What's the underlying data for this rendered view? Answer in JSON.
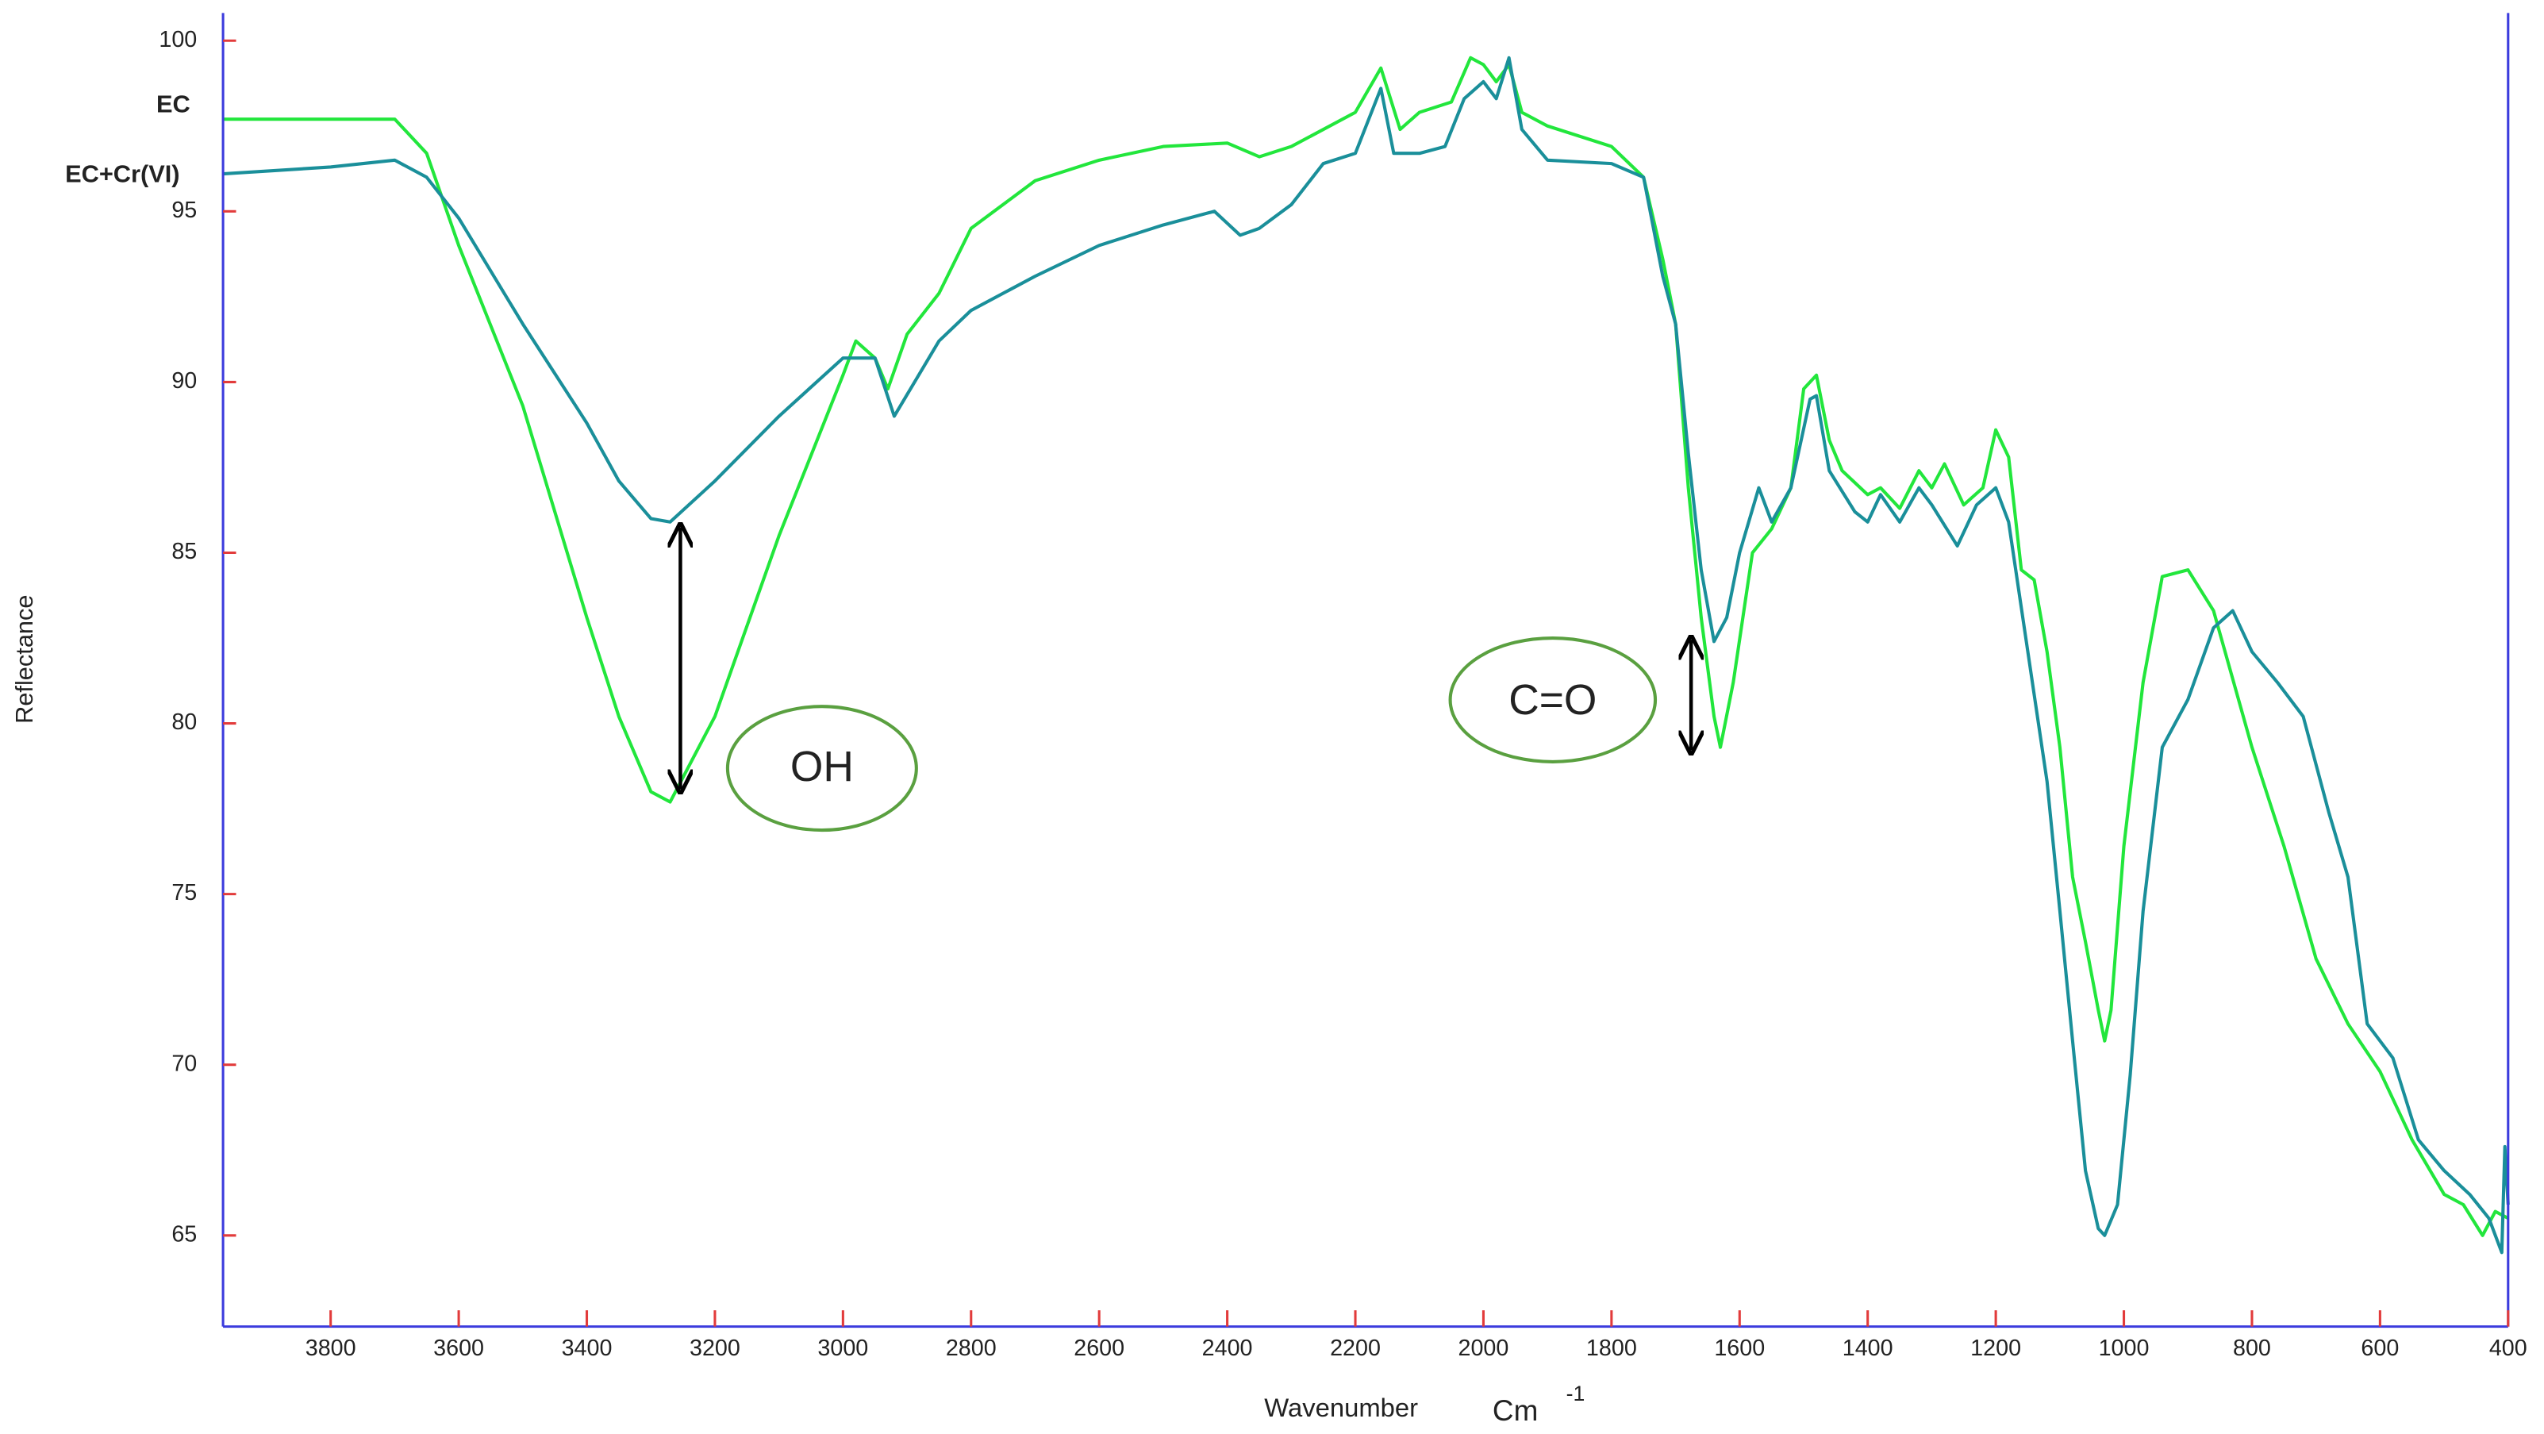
{
  "chart_data": {
    "type": "line",
    "x_label": "Wavenumber",
    "x_label_unit": "Cm",
    "x_label_exponent": "-1",
    "y_label": "Reflectance",
    "annotations": [
      "OH",
      "C=O"
    ],
    "xlim": [
      3968,
      400
    ],
    "ylim": [
      62.33,
      100.81
    ],
    "xticks": [
      3800,
      3600,
      3400,
      3200,
      3000,
      2800,
      2600,
      2400,
      2200,
      2000,
      1800,
      1600,
      1400,
      1200,
      1000,
      800,
      600,
      400
    ],
    "yticks": [
      65,
      70,
      75,
      80,
      85,
      90,
      95,
      100
    ],
    "series": [
      {
        "name": "EC",
        "color": "#22e63c",
        "x": [
          3968,
          3700,
          3650,
          3600,
          3500,
          3400,
          3350,
          3300,
          3270,
          3200,
          3100,
          3000,
          2980,
          2950,
          2930,
          2900,
          2850,
          2800,
          2700,
          2600,
          2500,
          2400,
          2350,
          2300,
          2200,
          2160,
          2130,
          2100,
          2050,
          2020,
          2000,
          1980,
          1960,
          1940,
          1900,
          1800,
          1750,
          1720,
          1700,
          1680,
          1660,
          1640,
          1630,
          1610,
          1580,
          1550,
          1520,
          1500,
          1480,
          1460,
          1440,
          1400,
          1380,
          1350,
          1320,
          1300,
          1280,
          1250,
          1220,
          1200,
          1180,
          1160,
          1140,
          1120,
          1100,
          1080,
          1060,
          1040,
          1030,
          1020,
          1000,
          970,
          940,
          900,
          860,
          800,
          750,
          700,
          650,
          600,
          550,
          500,
          470,
          440,
          420,
          400
        ],
        "values": [
          97.7,
          97.7,
          96.7,
          94.0,
          89.3,
          83.1,
          80.2,
          78.0,
          77.7,
          80.2,
          85.5,
          90.2,
          91.2,
          90.7,
          89.8,
          91.4,
          92.6,
          94.5,
          95.9,
          96.5,
          96.9,
          97.0,
          96.6,
          96.9,
          97.9,
          99.2,
          97.4,
          97.9,
          98.2,
          99.5,
          99.3,
          98.8,
          99.3,
          97.9,
          97.5,
          96.9,
          96.0,
          93.6,
          91.7,
          86.9,
          83.1,
          80.2,
          79.3,
          81.2,
          85.0,
          85.7,
          86.9,
          89.8,
          90.2,
          88.3,
          87.4,
          86.7,
          86.9,
          86.3,
          87.4,
          86.9,
          87.6,
          86.4,
          86.9,
          88.6,
          87.8,
          84.5,
          84.2,
          82.1,
          79.3,
          75.5,
          73.6,
          71.6,
          70.7,
          71.6,
          76.4,
          81.2,
          84.3,
          84.5,
          83.3,
          79.3,
          76.4,
          73.1,
          71.2,
          69.8,
          67.8,
          66.2,
          65.9,
          65.0,
          65.7,
          65.5
        ]
      },
      {
        "name": "EC+Cr(VI)",
        "color": "#1a8f9a",
        "x": [
          3968,
          3800,
          3700,
          3650,
          3600,
          3500,
          3400,
          3350,
          3300,
          3270,
          3200,
          3100,
          3000,
          2950,
          2920,
          2850,
          2800,
          2700,
          2600,
          2500,
          2420,
          2380,
          2350,
          2300,
          2250,
          2200,
          2160,
          2140,
          2100,
          2060,
          2030,
          2000,
          1980,
          1960,
          1940,
          1900,
          1800,
          1750,
          1720,
          1700,
          1680,
          1660,
          1640,
          1620,
          1600,
          1570,
          1550,
          1520,
          1490,
          1480,
          1460,
          1420,
          1400,
          1380,
          1350,
          1320,
          1300,
          1260,
          1230,
          1200,
          1180,
          1150,
          1120,
          1100,
          1080,
          1060,
          1040,
          1030,
          1010,
          990,
          970,
          940,
          900,
          860,
          830,
          800,
          760,
          720,
          680,
          650,
          620,
          580,
          540,
          500,
          460,
          430,
          410,
          405,
          400
        ],
        "values": [
          96.1,
          96.3,
          96.5,
          96.0,
          94.8,
          91.7,
          88.8,
          87.1,
          86.0,
          85.9,
          87.1,
          89.0,
          90.7,
          90.7,
          89.0,
          91.2,
          92.1,
          93.1,
          94.0,
          94.6,
          95.0,
          94.3,
          94.5,
          95.2,
          96.4,
          96.7,
          98.6,
          96.7,
          96.7,
          96.9,
          98.3,
          98.8,
          98.3,
          99.5,
          97.4,
          96.5,
          96.4,
          96.0,
          93.1,
          91.7,
          87.9,
          84.5,
          82.4,
          83.1,
          85.0,
          86.9,
          85.9,
          86.9,
          89.5,
          89.6,
          87.4,
          86.2,
          85.9,
          86.7,
          85.9,
          86.9,
          86.4,
          85.2,
          86.4,
          86.9,
          85.9,
          82.1,
          78.3,
          74.5,
          70.7,
          66.9,
          65.2,
          65.0,
          65.9,
          69.7,
          74.5,
          79.3,
          80.7,
          82.8,
          83.3,
          82.1,
          81.2,
          80.2,
          77.4,
          75.5,
          71.2,
          70.2,
          67.8,
          66.9,
          66.2,
          65.5,
          64.5,
          67.6,
          65.9
        ]
      }
    ]
  }
}
